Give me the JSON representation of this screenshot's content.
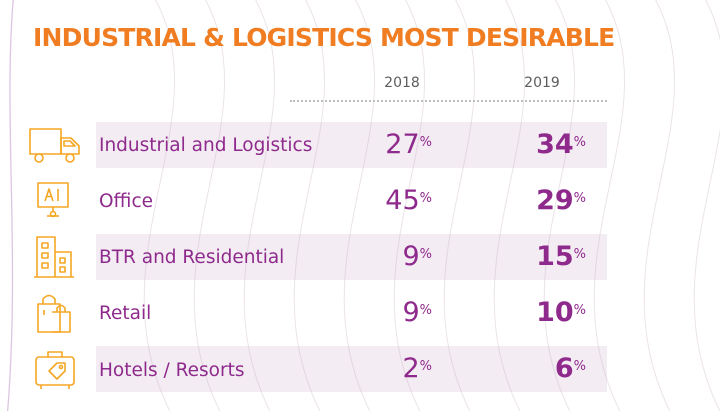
{
  "title": "INDUSTRIAL & LOGISTICS MOST DESIRABLE",
  "columns": [
    "2018",
    "2019"
  ],
  "percent_symbol": "%",
  "colors": {
    "title": "#f07d22",
    "text": "#8f2a8d",
    "icon": "#f5a623",
    "row_shade": "#f0e4ef"
  },
  "rows": [
    {
      "label": "Industrial and Logistics",
      "icon": "truck-icon",
      "v2018": "27",
      "v2019": "34"
    },
    {
      "label": "Office",
      "icon": "monitor-icon",
      "v2018": "45",
      "v2019": "29"
    },
    {
      "label": "BTR and Residential",
      "icon": "building-icon",
      "v2018": "9",
      "v2019": "15"
    },
    {
      "label": "Retail",
      "icon": "shopping-bag-icon",
      "v2018": "9",
      "v2019": "10"
    },
    {
      "label": "Hotels / Resorts",
      "icon": "suitcase-icon",
      "v2018": "2",
      "v2019": "6"
    }
  ]
}
